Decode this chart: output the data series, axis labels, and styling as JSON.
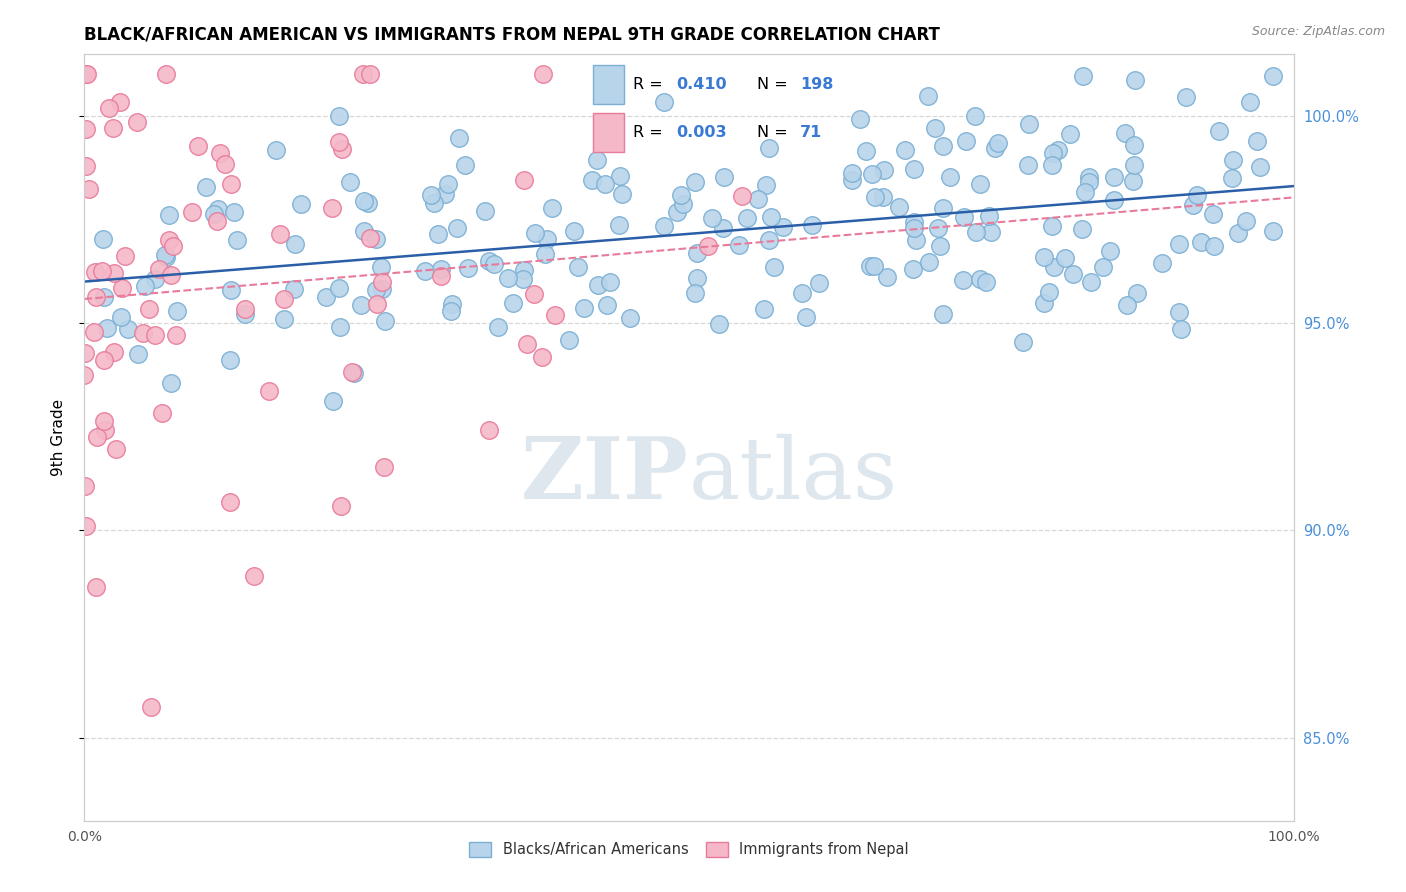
{
  "title": "BLACK/AFRICAN AMERICAN VS IMMIGRANTS FROM NEPAL 9TH GRADE CORRELATION CHART",
  "source_text": "Source: ZipAtlas.com",
  "ylabel": "9th Grade",
  "xlim": [
    0.0,
    100.0
  ],
  "ylim": [
    83.0,
    101.5
  ],
  "yticks": [
    85.0,
    90.0,
    95.0,
    100.0
  ],
  "blue_R": 0.41,
  "blue_N": 198,
  "pink_R": 0.003,
  "pink_N": 71,
  "blue_color": "#b8d4ea",
  "blue_edge": "#7bafd4",
  "blue_line_color": "#2a5fa8",
  "pink_color": "#f5b8c8",
  "pink_edge": "#e87a9a",
  "pink_line_color": "#e87a9a",
  "watermark_zip": "ZIP",
  "watermark_atlas": "atlas",
  "legend_color": "#3a7ad4",
  "background_color": "#ffffff",
  "grid_color": "#d8d8d8",
  "right_label_color": "#4a90d9",
  "right_ytick_values": [
    100.0,
    95.0,
    90.0,
    85.0
  ],
  "title_fontsize": 12,
  "marker_size": 160
}
